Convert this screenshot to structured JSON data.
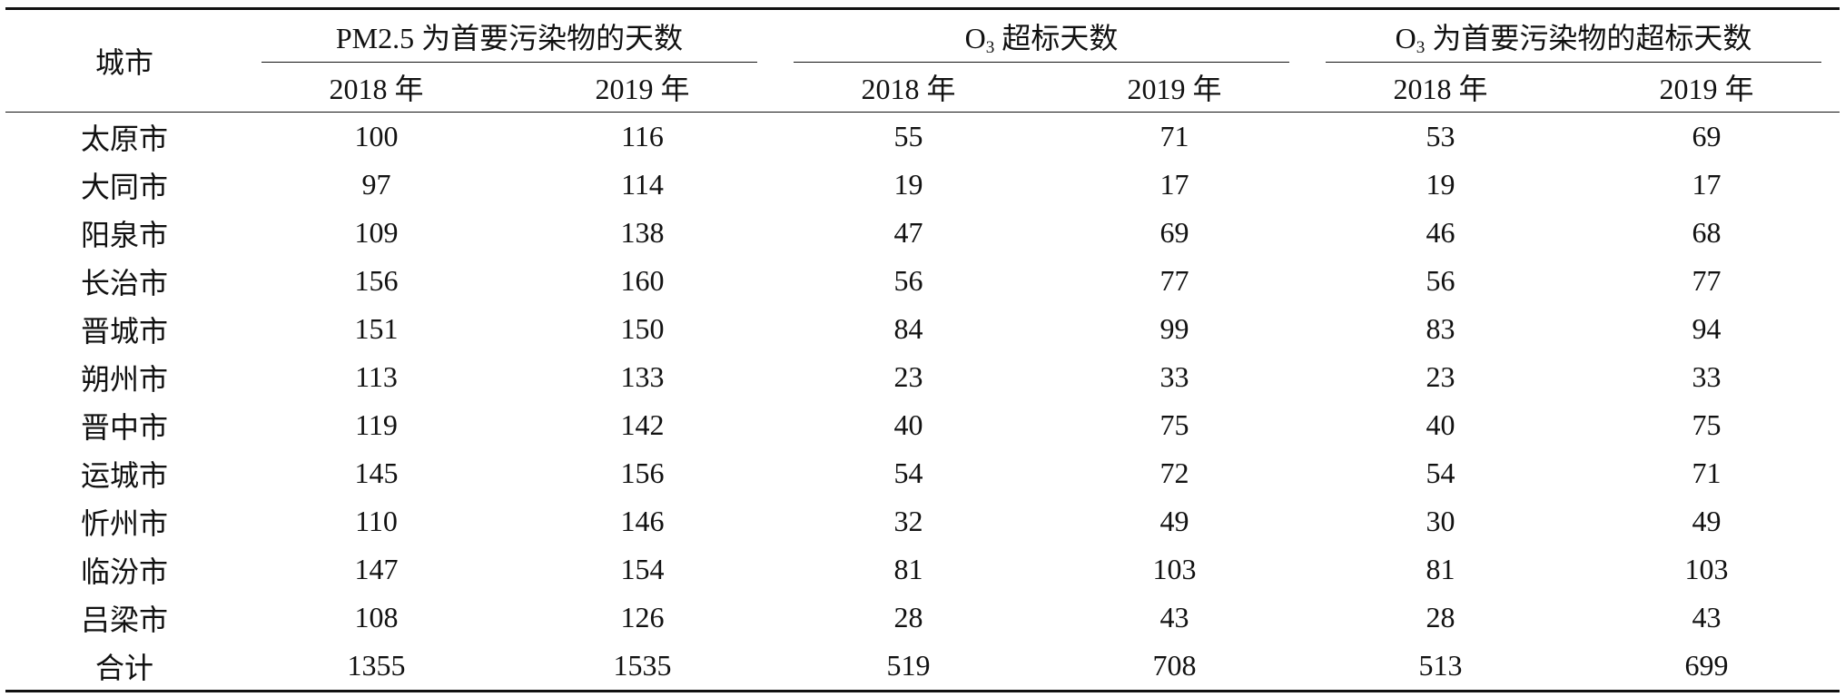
{
  "table": {
    "city_header": "城市",
    "groups": [
      {
        "prefix": "PM2.5",
        "sub": "",
        "suffix": " 为首要污染物的天数"
      },
      {
        "prefix": "O",
        "sub": "3",
        "suffix": " 超标天数"
      },
      {
        "prefix": "O",
        "sub": "3",
        "suffix": " 为首要污染物的超标天数"
      }
    ],
    "years": [
      "2018 年",
      "2019 年",
      "2018 年",
      "2019 年",
      "2018 年",
      "2019 年"
    ],
    "rows": [
      {
        "city": "太原市",
        "values": [
          "100",
          "116",
          "55",
          "71",
          "53",
          "69"
        ]
      },
      {
        "city": "大同市",
        "values": [
          "97",
          "114",
          "19",
          "17",
          "19",
          "17"
        ]
      },
      {
        "city": "阳泉市",
        "values": [
          "109",
          "138",
          "47",
          "69",
          "46",
          "68"
        ]
      },
      {
        "city": "长治市",
        "values": [
          "156",
          "160",
          "56",
          "77",
          "56",
          "77"
        ]
      },
      {
        "city": "晋城市",
        "values": [
          "151",
          "150",
          "84",
          "99",
          "83",
          "94"
        ]
      },
      {
        "city": "朔州市",
        "values": [
          "113",
          "133",
          "23",
          "33",
          "23",
          "33"
        ]
      },
      {
        "city": "晋中市",
        "values": [
          "119",
          "142",
          "40",
          "75",
          "40",
          "75"
        ]
      },
      {
        "city": "运城市",
        "values": [
          "145",
          "156",
          "54",
          "72",
          "54",
          "71"
        ]
      },
      {
        "city": "忻州市",
        "values": [
          "110",
          "146",
          "32",
          "49",
          "30",
          "49"
        ]
      },
      {
        "city": "临汾市",
        "values": [
          "147",
          "154",
          "81",
          "103",
          "81",
          "103"
        ]
      },
      {
        "city": "吕梁市",
        "values": [
          "108",
          "126",
          "28",
          "43",
          "28",
          "43"
        ]
      },
      {
        "city": "合计",
        "values": [
          "1355",
          "1535",
          "519",
          "708",
          "513",
          "699"
        ]
      }
    ]
  }
}
